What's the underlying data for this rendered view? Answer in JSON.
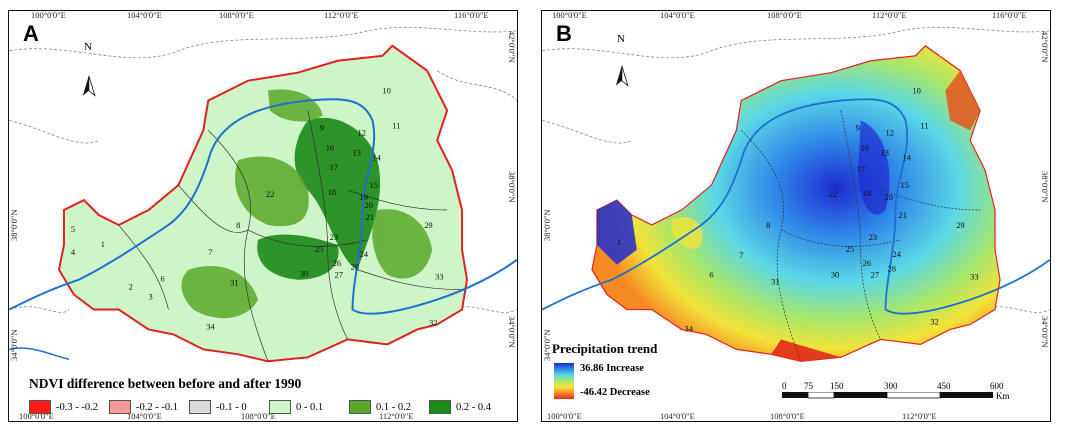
{
  "panel_a": {
    "letter": "A",
    "north": "N",
    "top_ticks": [
      "100°0'0\"E",
      "104°0'0\"E",
      "108°0'0\"E",
      "112°0'0\"E",
      "116°0'0\"E"
    ],
    "bottom_ticks": [
      "100°0'0\"E",
      "104°0'0\"E",
      "108°0'0\"E",
      "112°0'0\"E"
    ],
    "left_ticks": [
      "38°0'0\"N",
      "34°0'0\"N"
    ],
    "right_ticks": [
      "42°0'0\"N",
      "38°0'0\"N",
      "34°0'0\"N"
    ],
    "legend_title": "NDVI difference between before and after 1990",
    "legend": [
      {
        "label": "-0.3 - -0.2",
        "color": "#ff1a1a"
      },
      {
        "label": "-0.2 - -0.1",
        "color": "#f49a9a"
      },
      {
        "label": "-0.1 - 0",
        "color": "#d9d9d9"
      },
      {
        "label": "0 - 0.1",
        "color": "#cdf5c7"
      },
      {
        "label": "0.1 - 0.2",
        "color": "#5aa82a"
      },
      {
        "label": "0.2 - 0.4",
        "color": "#1c8a18"
      }
    ]
  },
  "panel_b": {
    "letter": "B",
    "north": "N",
    "top_ticks": [
      "100°0'0\"E",
      "104°0'0\"E",
      "108°0'0\"E",
      "112°0'0\"E",
      "116°0'0\"E"
    ],
    "bottom_ticks": [
      "100°0'0\"E",
      "104°0'0\"E",
      "108°0'0\"E",
      "112°0'0\"E"
    ],
    "left_ticks": [
      "38°0'0\"N",
      "34°0'0\"N"
    ],
    "right_ticks": [
      "42°0'0\"N",
      "38°0'0\"N",
      "34°0'0\"N"
    ],
    "legend_title": "Precipitation trend",
    "legend_high": "36.86 Increase",
    "legend_low": "-46.42 Decrease",
    "scale_labels": [
      "0",
      "75",
      "150",
      "300",
      "450",
      "600"
    ],
    "scale_unit": "Km"
  },
  "region_numbers": [
    "1",
    "2",
    "3",
    "4",
    "5",
    "6",
    "7",
    "8",
    "9",
    "10",
    "11",
    "12",
    "13",
    "14",
    "15",
    "16",
    "17",
    "18",
    "19",
    "20",
    "21",
    "22",
    "23",
    "24",
    "25",
    "26",
    "27",
    "28",
    "29",
    "30",
    "31",
    "32",
    "33",
    "34"
  ],
  "colors": {
    "boundary": "#e02020",
    "river": "#1f6fd0",
    "ramp_high": "#1e2bcf",
    "ramp_low": "#e22a1a"
  }
}
